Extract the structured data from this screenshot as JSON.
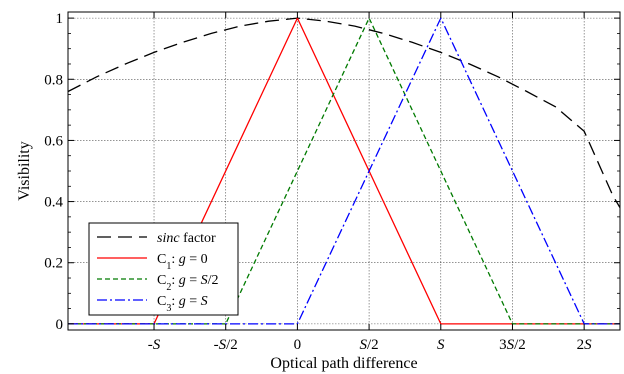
{
  "chart_data": {
    "type": "line",
    "xlabel": "Optical path difference",
    "ylabel": "Visibility",
    "xlim": [
      -1.6,
      2.25
    ],
    "ylim": [
      -0.02,
      1.02
    ],
    "grid": true,
    "legend_position": "bottom-left",
    "x_ticks": [
      {
        "value": -1,
        "pre": "-",
        "italic": "S",
        "post": ""
      },
      {
        "value": -0.5,
        "pre": "-",
        "italic": "S",
        "post": "/2"
      },
      {
        "value": 0,
        "pre": "0",
        "italic": "",
        "post": ""
      },
      {
        "value": 0.5,
        "pre": "",
        "italic": "S",
        "post": "/2"
      },
      {
        "value": 1,
        "pre": "",
        "italic": "S",
        "post": ""
      },
      {
        "value": 1.5,
        "pre": "3",
        "italic": "S",
        "post": "/2"
      },
      {
        "value": 2,
        "pre": "2",
        "italic": "S",
        "post": ""
      }
    ],
    "y_ticks": [
      {
        "value": 0,
        "label": "0"
      },
      {
        "value": 0.2,
        "label": "0.2"
      },
      {
        "value": 0.4,
        "label": "0.4"
      },
      {
        "value": 0.6,
        "label": "0.6"
      },
      {
        "value": 0.8,
        "label": "0.8"
      },
      {
        "value": 1,
        "label": "1"
      }
    ],
    "series": [
      {
        "key": "sinc",
        "color": "#000000",
        "dash": "14 7",
        "legend": [
          {
            "t": "sinc",
            "i": true
          },
          {
            "t": " factor"
          }
        ],
        "x": [
          -1.6,
          -1.4,
          -1.2,
          -1.0,
          -0.8,
          -0.6,
          -0.4,
          -0.2,
          0.0,
          0.2,
          0.4,
          0.6,
          0.8,
          1.0,
          1.2,
          1.4,
          1.6,
          1.8,
          2.0,
          2.2,
          2.25
        ],
        "y": [
          0.76,
          0.808,
          0.85,
          0.888,
          0.921,
          0.95,
          0.974,
          0.99,
          1.0,
          0.99,
          0.974,
          0.95,
          0.921,
          0.888,
          0.85,
          0.808,
          0.76,
          0.71,
          0.63,
          0.42,
          0.38
        ]
      },
      {
        "key": "c1",
        "color": "#ff0000",
        "dash": "",
        "legend": [
          {
            "t": "C"
          },
          {
            "t": "1",
            "sub": true
          },
          {
            "t": ": "
          },
          {
            "t": "g",
            "i": true
          },
          {
            "t": " = 0"
          }
        ],
        "x": [
          -1.6,
          -1.0,
          0.0,
          1.0,
          2.25
        ],
        "y": [
          0,
          0,
          1,
          0,
          0
        ]
      },
      {
        "key": "c2",
        "color": "#007a00",
        "dash": "5 3",
        "legend": [
          {
            "t": "C"
          },
          {
            "t": "2",
            "sub": true
          },
          {
            "t": ": "
          },
          {
            "t": "g",
            "i": true
          },
          {
            "t": " = "
          },
          {
            "t": "S",
            "i": true
          },
          {
            "t": "/2"
          }
        ],
        "x": [
          -1.6,
          -0.5,
          0.5,
          1.5,
          2.25
        ],
        "y": [
          0,
          0,
          1,
          0,
          0
        ]
      },
      {
        "key": "c3",
        "color": "#0000ff",
        "dash": "10 3 2 3",
        "legend": [
          {
            "t": "C"
          },
          {
            "t": "3",
            "sub": true
          },
          {
            "t": ": "
          },
          {
            "t": "g",
            "i": true
          },
          {
            "t": " = "
          },
          {
            "t": "S",
            "i": true
          }
        ],
        "x": [
          -1.6,
          0.0,
          1.0,
          2.0,
          2.25
        ],
        "y": [
          0,
          0,
          1,
          0,
          0
        ]
      }
    ]
  }
}
